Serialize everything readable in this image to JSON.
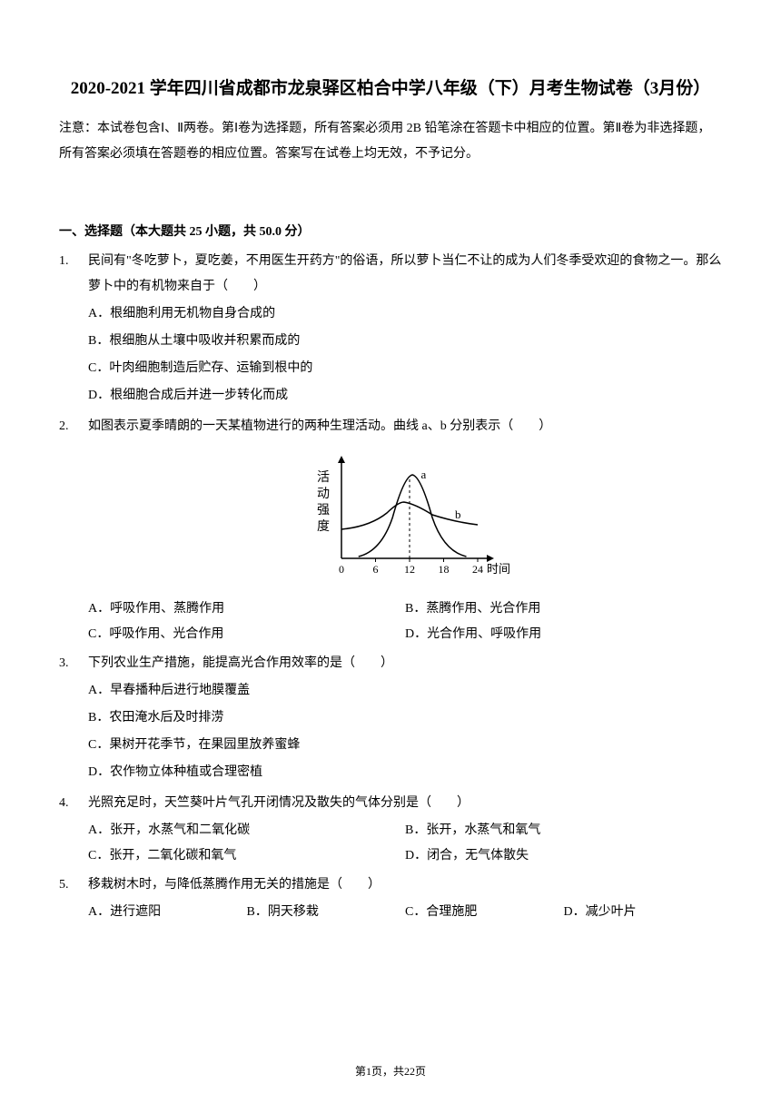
{
  "title": "2020-2021 学年四川省成都市龙泉驿区柏合中学八年级（下）月考生物试卷（3月份）",
  "instructions": "注意：本试卷包含Ⅰ、Ⅱ两卷。第Ⅰ卷为选择题，所有答案必须用 2B 铅笔涂在答题卡中相应的位置。第Ⅱ卷为非选择题，所有答案必须填在答题卷的相应位置。答案写在试卷上均无效，不予记分。",
  "section_header": "一、选择题（本大题共 25 小题，共 50.0 分）",
  "questions": [
    {
      "num": "1.",
      "text": "民间有\"冬吃萝卜，夏吃姜，不用医生开药方\"的俗语，所以萝卜当仁不让的成为人们冬季受欢迎的食物之一。那么萝卜中的有机物来自于（　　）",
      "layout": "vertical",
      "options": [
        "A．根细胞利用无机物自身合成的",
        "B．根细胞从土壤中吸收并积累而成的",
        "C．叶肉细胞制造后贮存、运输到根中的",
        "D．根细胞合成后并进一步转化而成"
      ]
    },
    {
      "num": "2.",
      "text": "如图表示夏季晴朗的一天某植物进行的两种生理活动。曲线 a、b 分别表示（　　）",
      "has_chart": true,
      "layout": "two-col",
      "options": [
        "A．呼吸作用、蒸腾作用",
        "B．蒸腾作用、光合作用",
        "C．呼吸作用、光合作用",
        "D．光合作用、呼吸作用"
      ]
    },
    {
      "num": "3.",
      "text": "下列农业生产措施，能提高光合作用效率的是（　　）",
      "layout": "vertical",
      "options": [
        "A．早春播种后进行地膜覆盖",
        "B．农田淹水后及时排涝",
        "C．果树开花季节，在果园里放养蜜蜂",
        "D．农作物立体种植或合理密植"
      ]
    },
    {
      "num": "4.",
      "text": "光照充足时，天竺葵叶片气孔开闭情况及散失的气体分别是（　　）",
      "layout": "two-col",
      "options": [
        "A．张开，水蒸气和二氧化碳",
        "B．张开，水蒸气和氧气",
        "C．张开，二氧化碳和氧气",
        "D．闭合，无气体散失"
      ]
    },
    {
      "num": "5.",
      "text": "移栽树木时，与降低蒸腾作用无关的措施是（　　）",
      "layout": "four-col",
      "options": [
        "A．进行遮阳",
        "B．阴天移栽",
        "C．合理施肥",
        "D．减少叶片"
      ]
    }
  ],
  "chart": {
    "y_label": "活动强度",
    "x_label": "时间",
    "x_ticks": [
      "0",
      "6",
      "12",
      "18",
      "24"
    ],
    "curve_a_label": "a",
    "curve_b_label": "b",
    "stroke_color": "#000000",
    "background": "#ffffff"
  },
  "footer": "第1页，共22页"
}
